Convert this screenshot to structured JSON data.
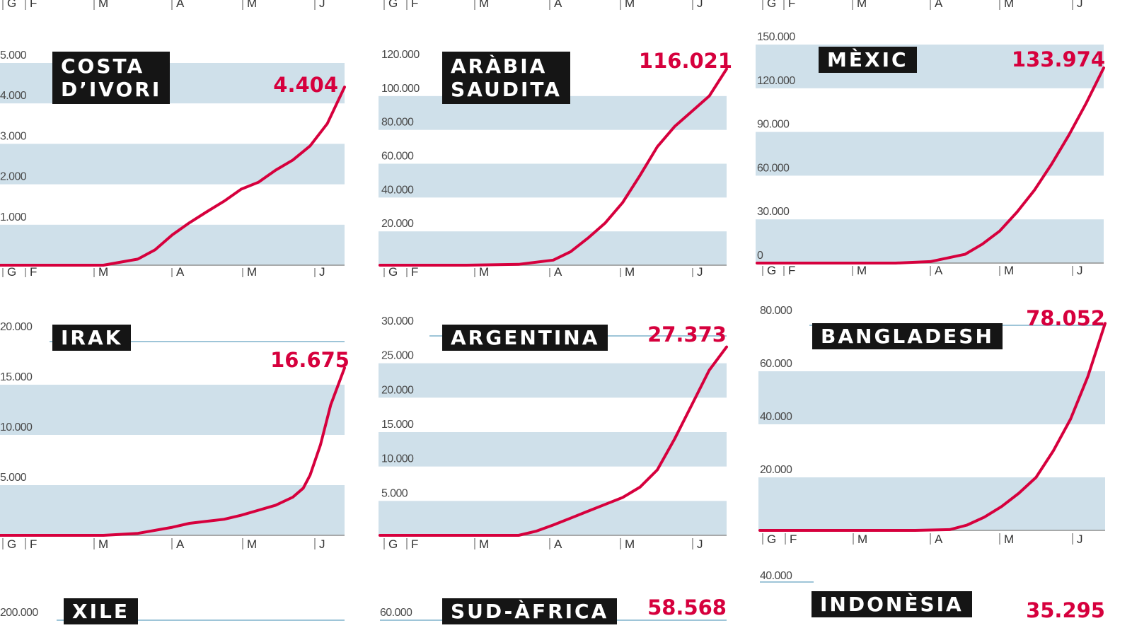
{
  "chart_data": [
    {
      "type": "line",
      "title": "COSTA\nD’IVORI",
      "final_label": "4.404",
      "ylim": [
        0,
        5000
      ],
      "yticks": [
        "5.000",
        "4.000",
        "3.000",
        "2.000",
        "1.000"
      ],
      "x": [
        0,
        0.3,
        0.4,
        0.45,
        0.5,
        0.55,
        0.6,
        0.65,
        0.7,
        0.75,
        0.8,
        0.85,
        0.9,
        0.95,
        1.0
      ],
      "values": [
        0,
        0,
        150,
        380,
        750,
        1050,
        1320,
        1580,
        1880,
        2050,
        2350,
        2600,
        2950,
        3500,
        4404
      ]
    },
    {
      "type": "line",
      "title": "ARÀBIA\nSAUDITA",
      "final_label": "116.021",
      "ylim": [
        0,
        120000
      ],
      "yticks": [
        "120.000",
        "100.000",
        "80.000",
        "60.000",
        "40.000",
        "20.000"
      ],
      "x": [
        0,
        0.25,
        0.4,
        0.5,
        0.55,
        0.6,
        0.65,
        0.7,
        0.75,
        0.8,
        0.85,
        0.9,
        0.95,
        1.0
      ],
      "values": [
        0,
        0,
        500,
        3000,
        8000,
        16000,
        25000,
        37000,
        53000,
        70000,
        82000,
        91000,
        100000,
        116021
      ]
    },
    {
      "type": "line",
      "title": "MÈXIC",
      "final_label": "133.974",
      "ylim": [
        0,
        150000
      ],
      "yticks": [
        "150.000",
        "120.000",
        "90.000",
        "60.000",
        "30.000",
        "0"
      ],
      "x": [
        0,
        0.4,
        0.5,
        0.6,
        0.65,
        0.7,
        0.75,
        0.8,
        0.85,
        0.9,
        0.95,
        1.0
      ],
      "values": [
        0,
        0,
        1000,
        6000,
        13000,
        22000,
        35000,
        50000,
        68000,
        88000,
        110000,
        133974
      ]
    },
    {
      "type": "line",
      "title": "IRAK",
      "final_label": "16.675",
      "ylim": [
        0,
        20000
      ],
      "yticks": [
        "20.000",
        "15.000",
        "10.000",
        "5.000"
      ],
      "x": [
        0,
        0.3,
        0.4,
        0.5,
        0.55,
        0.6,
        0.65,
        0.7,
        0.75,
        0.8,
        0.85,
        0.88,
        0.9,
        0.93,
        0.96,
        1.0
      ],
      "values": [
        0,
        0,
        200,
        800,
        1200,
        1400,
        1600,
        2000,
        2500,
        3000,
        3800,
        4700,
        6000,
        9000,
        13000,
        16675
      ]
    },
    {
      "type": "line",
      "title": "ARGENTINA",
      "final_label": "27.373",
      "ylim": [
        0,
        30000
      ],
      "yticks": [
        "30.000",
        "25.000",
        "20.000",
        "15.000",
        "10.000",
        "5.000"
      ],
      "x": [
        0,
        0.4,
        0.45,
        0.5,
        0.55,
        0.6,
        0.65,
        0.7,
        0.75,
        0.8,
        0.85,
        0.9,
        0.95,
        1.0
      ],
      "values": [
        0,
        0,
        600,
        1500,
        2500,
        3500,
        4500,
        5500,
        7000,
        9500,
        14000,
        19000,
        24000,
        27373
      ]
    },
    {
      "type": "line",
      "title": "BANGLADESH",
      "final_label": "78.052",
      "ylim": [
        0,
        80000
      ],
      "yticks": [
        "80.000",
        "60.000",
        "40.000",
        "20.000"
      ],
      "x": [
        0,
        0.45,
        0.55,
        0.6,
        0.65,
        0.7,
        0.75,
        0.8,
        0.85,
        0.9,
        0.95,
        1.0
      ],
      "values": [
        0,
        0,
        300,
        2000,
        5000,
        9000,
        14000,
        20000,
        30000,
        42000,
        58000,
        78052
      ]
    },
    {
      "type": "line",
      "title": "XILE",
      "yticks": [
        "200.000"
      ]
    },
    {
      "type": "line",
      "title": "SUD-ÀFRICA",
      "final_label": "58.568",
      "yticks": [
        "60.000"
      ]
    },
    {
      "type": "line",
      "title": "INDONÈSIA",
      "final_label": "35.295",
      "yticks": [
        "40.000"
      ]
    }
  ],
  "months": [
    "G",
    "F",
    "M",
    "A",
    "M",
    "J"
  ],
  "colors": {
    "series": "#d6003d",
    "band": "#cfe0ea",
    "title_bg": "#151515"
  }
}
